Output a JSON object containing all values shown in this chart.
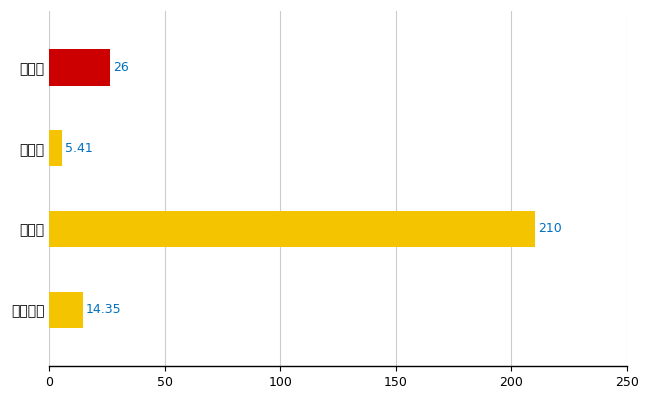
{
  "categories": [
    "釧路市",
    "県平均",
    "県最大",
    "全国平均"
  ],
  "values": [
    26,
    5.41,
    210,
    14.35
  ],
  "labels": [
    "26",
    "5.41",
    "210",
    "14.35"
  ],
  "bar_colors": [
    "#cc0000",
    "#f5c400",
    "#f5c400",
    "#f5c400"
  ],
  "xlim": [
    0,
    250
  ],
  "xticks": [
    0,
    50,
    100,
    150,
    200,
    250
  ],
  "background_color": "#ffffff",
  "grid_color": "#cccccc",
  "label_color": "#0070c0",
  "bar_height": 0.45,
  "figsize": [
    6.5,
    4.0
  ],
  "dpi": 100
}
